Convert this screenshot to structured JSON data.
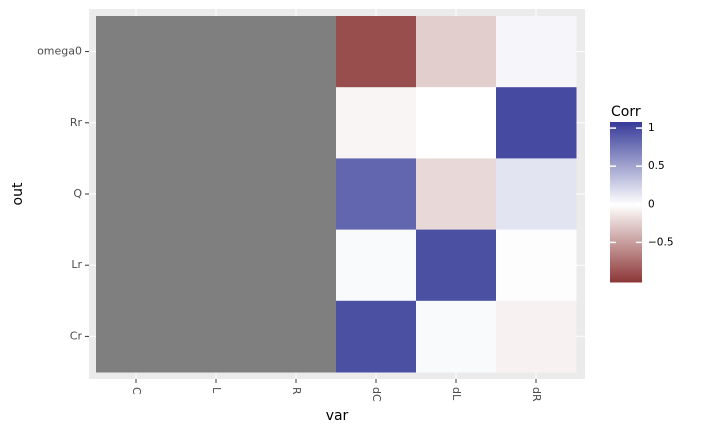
{
  "chart_data": {
    "type": "heatmap",
    "x_label": "var",
    "y_label": "out",
    "x_categories": [
      "C",
      "L",
      "R",
      "dC",
      "dL",
      "dR"
    ],
    "y_categories": [
      "omega0",
      "Rr",
      "Q",
      "Lr",
      "Cr"
    ],
    "values": [
      [
        null,
        null,
        null,
        -0.9,
        -0.25,
        0.05
      ],
      [
        null,
        null,
        null,
        -0.05,
        0.0,
        1
      ],
      [
        null,
        null,
        null,
        0.85,
        -0.2,
        0.15
      ],
      [
        null,
        null,
        null,
        0.03,
        0.97,
        -0.01
      ],
      [
        null,
        null,
        null,
        0.97,
        0.03,
        -0.07
      ]
    ],
    "na_color": "#7f7f7f",
    "low_color": "#852a2a",
    "mid_color": "#ffffff",
    "high_color": "#383c99",
    "legend_title": "Corr",
    "clim": [
      -1.02,
      1.08
    ],
    "cticks": [
      {
        "value": -0.5,
        "label": "−0.5"
      },
      0,
      0.5,
      1
    ]
  }
}
